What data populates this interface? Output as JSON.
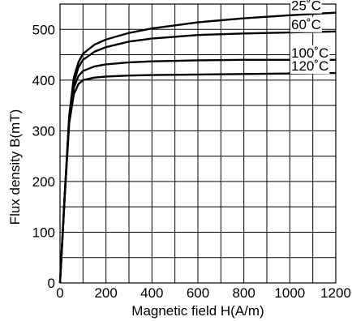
{
  "chart_data": {
    "type": "line",
    "xlabel": "Magnetic field H(A/m)",
    "ylabel": "Flux density B(mT)",
    "xlim": [
      0,
      1200
    ],
    "ylim": [
      0,
      550
    ],
    "x_ticks": [
      0,
      200,
      400,
      600,
      800,
      1000,
      1200
    ],
    "y_ticks": [
      0,
      100,
      200,
      300,
      400,
      500
    ],
    "x_grid_step": 100,
    "y_grid_step": 50,
    "grid": true,
    "series": [
      {
        "name": "25˚C",
        "x": [
          0,
          20,
          40,
          60,
          80,
          100,
          150,
          200,
          300,
          400,
          600,
          800,
          1000,
          1200
        ],
        "values": [
          0,
          170,
          330,
          405,
          435,
          452,
          470,
          480,
          493,
          502,
          514,
          522,
          528,
          533
        ]
      },
      {
        "name": "60˚C",
        "x": [
          0,
          20,
          40,
          60,
          80,
          100,
          150,
          200,
          300,
          400,
          600,
          800,
          1000,
          1200
        ],
        "values": [
          0,
          170,
          325,
          395,
          425,
          440,
          456,
          465,
          476,
          482,
          489,
          492,
          494,
          496
        ]
      },
      {
        "name": "100˚C",
        "x": [
          0,
          20,
          40,
          60,
          80,
          100,
          150,
          200,
          300,
          400,
          600,
          800,
          1000,
          1200
        ],
        "values": [
          0,
          168,
          320,
          385,
          408,
          418,
          427,
          431,
          435,
          437,
          439,
          440,
          440,
          440
        ]
      },
      {
        "name": "120˚C",
        "x": [
          0,
          20,
          40,
          60,
          80,
          100,
          150,
          200,
          300,
          400,
          600,
          800,
          1000,
          1200
        ],
        "values": [
          0,
          166,
          315,
          372,
          392,
          400,
          405,
          407,
          409,
          410,
          411,
          412,
          413,
          414
        ]
      }
    ],
    "line_color": "#000000"
  }
}
